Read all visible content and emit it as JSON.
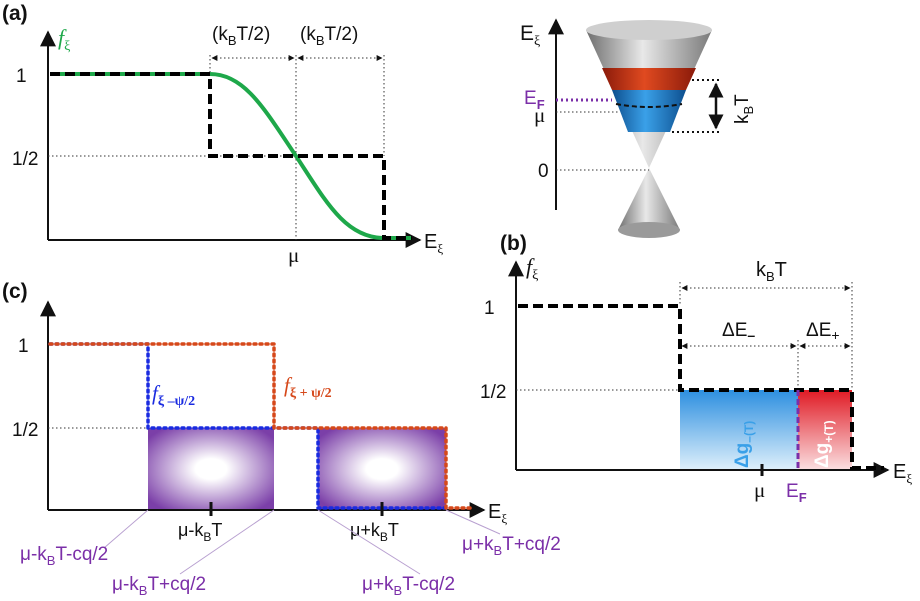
{
  "colors": {
    "green_curve": "#1ea84a",
    "purple_label": "#7b2fa8",
    "blue_band": "#1f7fd0",
    "red_band": "#c8250f",
    "blue_dotted": "#1a2be0",
    "red_dotted": "#d6481a",
    "fill_light_blue": "#3aa0e8",
    "fill_red": "#e0202a"
  },
  "panel_a": {
    "label": "(a)",
    "y_label": "f",
    "y_sub": "ξ",
    "x_label": "E",
    "x_sub": "ξ",
    "tick_one": "1",
    "tick_half": "1/2",
    "mu": "μ",
    "width_left": "(k",
    "width_left_sub": "B",
    "width_left_end": "T/2)",
    "width_right": "(k",
    "width_right_sub": "B",
    "width_right_end": "T/2)"
  },
  "cone": {
    "axis_label": "E",
    "axis_sub": "ξ",
    "ef_label": "E",
    "ef_sub": "F",
    "mu": "μ",
    "zero": "0",
    "kbt": "k",
    "kbt_sub": "B",
    "kbt_end": "T"
  },
  "panel_b": {
    "label": "(b)",
    "y_label": "f",
    "y_sub": "ξ",
    "x_label": "E",
    "x_sub": "ξ",
    "tick_one": "1",
    "tick_half": "1/2",
    "kbt": "k",
    "kbt_sub": "B",
    "kbt_end": "T",
    "de_minus": "ΔE",
    "de_minus_sub": "–",
    "de_plus": "ΔE",
    "de_plus_sub": "+",
    "dg_minus": "Δg",
    "dg_minus_sub": "–(T)",
    "dg_plus": "Δg",
    "dg_plus_sub": "+(T)",
    "mu": "μ",
    "ef": "E",
    "ef_sub": "F"
  },
  "panel_c": {
    "label": "(c)",
    "tick_one": "1",
    "tick_half": "1/2",
    "x_label": "E",
    "x_sub": "ξ",
    "f_minus": "f",
    "f_minus_sub": "ξ –ψ/2",
    "f_plus": "f",
    "f_plus_sub": "ξ + ψ/2",
    "mu_minus_kbt": "μ-k",
    "mu_minus_kbt_sub": "B",
    "mu_minus_kbt_end": "T",
    "mu_plus_kbt": "μ+k",
    "mu_plus_kbt_sub": "B",
    "mu_plus_kbt_end": "T",
    "lbl1": "μ-k",
    "lbl1_sub": "B",
    "lbl1_end": "T-cq/2",
    "lbl2": "μ-k",
    "lbl2_sub": "B",
    "lbl2_end": "T+cq/2",
    "lbl3": "μ+k",
    "lbl3_sub": "B",
    "lbl3_end": "T-cq/2",
    "lbl4": "μ+k",
    "lbl4_sub": "B",
    "lbl4_end": "T+cq/2"
  }
}
